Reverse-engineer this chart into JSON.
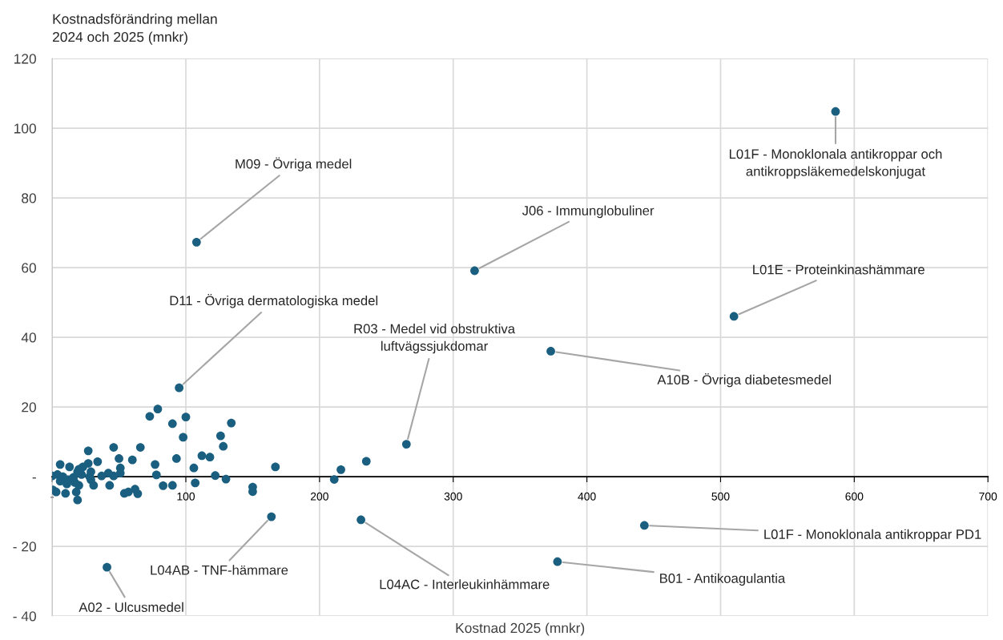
{
  "chart_data": {
    "type": "scatter",
    "xlabel": "Kostnad 2025 (mnkr)",
    "ylabel": "Kostnadsförändring mellan\n2024 och 2025 (mnkr)",
    "xlim": [
      0,
      700
    ],
    "xticks": [
      {
        "value": 0,
        "label": "-"
      },
      100,
      200,
      300,
      400,
      500,
      600,
      700
    ],
    "ylim": [
      -40,
      120
    ],
    "yticks": [
      {
        "value": -40,
        "label": "- 40"
      },
      {
        "value": -20,
        "label": "- 20"
      },
      {
        "value": 0,
        "label": "-"
      },
      20,
      40,
      60,
      80,
      100,
      120
    ],
    "grid": true,
    "marker": "circle",
    "legend": false,
    "series": [
      {
        "color": "#1a5f80",
        "x": [
          586,
          108,
          316,
          510,
          373,
          95,
          265,
          164,
          231,
          443,
          378,
          41,
          79,
          73,
          100,
          90,
          134,
          98,
          126,
          128,
          27,
          46,
          66,
          50,
          60,
          34,
          112,
          118,
          77,
          93,
          106,
          167,
          51,
          78,
          122,
          130,
          107,
          83,
          90,
          150,
          150,
          54,
          57,
          62,
          64,
          19,
          43,
          31,
          37,
          42,
          46,
          51,
          10,
          3,
          0.5,
          18,
          6,
          13,
          20,
          27,
          23,
          29,
          28,
          0,
          4,
          8,
          12,
          11,
          6,
          16,
          19,
          22,
          17,
          20,
          29,
          211,
          216,
          235
        ],
        "values": [
          104.8,
          67.3,
          59.1,
          46,
          36,
          25.5,
          9.3,
          -11.5,
          -12.4,
          -14,
          -24.4,
          -26,
          19.4,
          17.3,
          17.1,
          15.2,
          15.4,
          11.3,
          11.7,
          8.7,
          7.4,
          8.4,
          8.4,
          5.2,
          4.8,
          4.3,
          6,
          5.6,
          3.5,
          5.2,
          2.5,
          2.8,
          2.5,
          0.5,
          0.3,
          -0.7,
          -1.8,
          -2.6,
          -2.5,
          -3,
          -4.3,
          -4.8,
          -4.4,
          -3.6,
          -4.9,
          -6.7,
          -2.5,
          -2.5,
          0.2,
          1,
          0.2,
          1,
          -4.8,
          -4.4,
          -3.8,
          -4.4,
          3.5,
          2.8,
          2.1,
          3.8,
          2.8,
          1.4,
          0,
          0.2,
          0.6,
          0,
          -0.9,
          -2.1,
          -1.3,
          -0.2,
          1.4,
          0.6,
          -1.7,
          -2.5,
          -0.9,
          -0.8,
          2,
          4.4
        ]
      }
    ],
    "annotations": [
      {
        "text": "L01F - Monoklonala antikroppar och\nantikroppsläkemedelskonjugat",
        "x": 586,
        "y": 104.8
      },
      {
        "text": "M09 - Övriga medel",
        "x": 108,
        "y": 67.3
      },
      {
        "text": "J06 - Immunglobuliner",
        "x": 316,
        "y": 59.1
      },
      {
        "text": "L01E - Proteinkinashämmare",
        "x": 510,
        "y": 46
      },
      {
        "text": "A10B - Övriga diabetesmedel",
        "x": 373,
        "y": 36
      },
      {
        "text": "D11 - Övriga dermatologiska medel",
        "x": 95,
        "y": 25.5
      },
      {
        "text": "R03 - Medel vid obstruktiva\nluftvägssjukdomar",
        "x": 265,
        "y": 9.3
      },
      {
        "text": "L04AB - TNF-hämmare",
        "x": 164,
        "y": -11.5
      },
      {
        "text": "L04AC - Interleukinhämmare",
        "x": 231,
        "y": -12.4
      },
      {
        "text": "L01F - Monoklonala antikroppar PD1",
        "x": 443,
        "y": -14
      },
      {
        "text": "B01 - Antikoagulantia",
        "x": 378,
        "y": -24.4
      },
      {
        "text": "A02 - Ulcusmedel",
        "x": 41,
        "y": -26
      }
    ]
  }
}
